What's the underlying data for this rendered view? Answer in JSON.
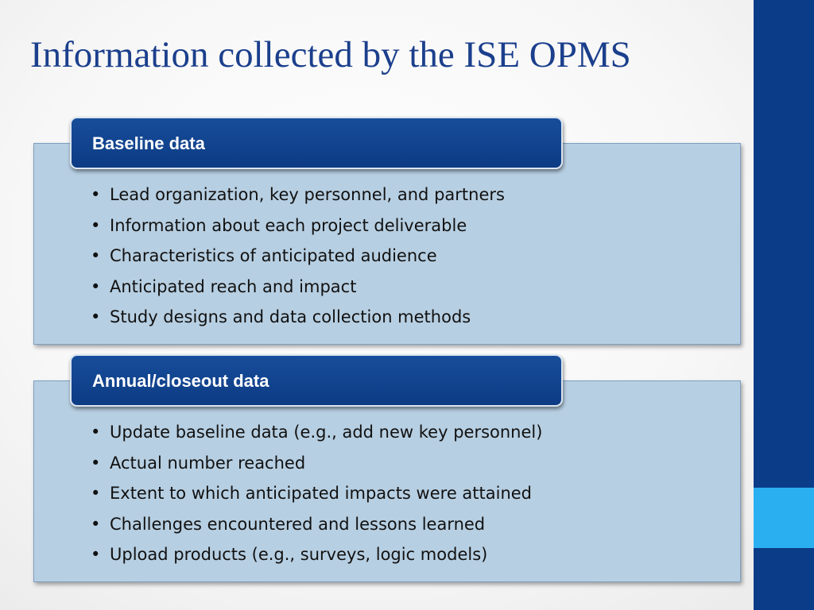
{
  "title": "Information collected by the ISE OPMS",
  "colors": {
    "sidebar": "#0b3c88",
    "sidebar_accent": "#2ab0f0",
    "title_text": "#1b3f8c",
    "box_fill": "#b7cfe2",
    "tab_fill": "#0d3b84"
  },
  "sections": [
    {
      "heading": "Baseline data",
      "items": [
        "Lead organization, key personnel, and partners",
        "Information about each project deliverable",
        "Characteristics of anticipated audience",
        "Anticipated reach and impact",
        "Study designs and data collection methods"
      ]
    },
    {
      "heading": "Annual/closeout data",
      "items": [
        "Update baseline data (e.g., add new key personnel)",
        "Actual number reached",
        "Extent to which anticipated impacts were attained",
        "Challenges encountered and lessons learned",
        "Upload products (e.g., surveys, logic models)"
      ]
    }
  ]
}
